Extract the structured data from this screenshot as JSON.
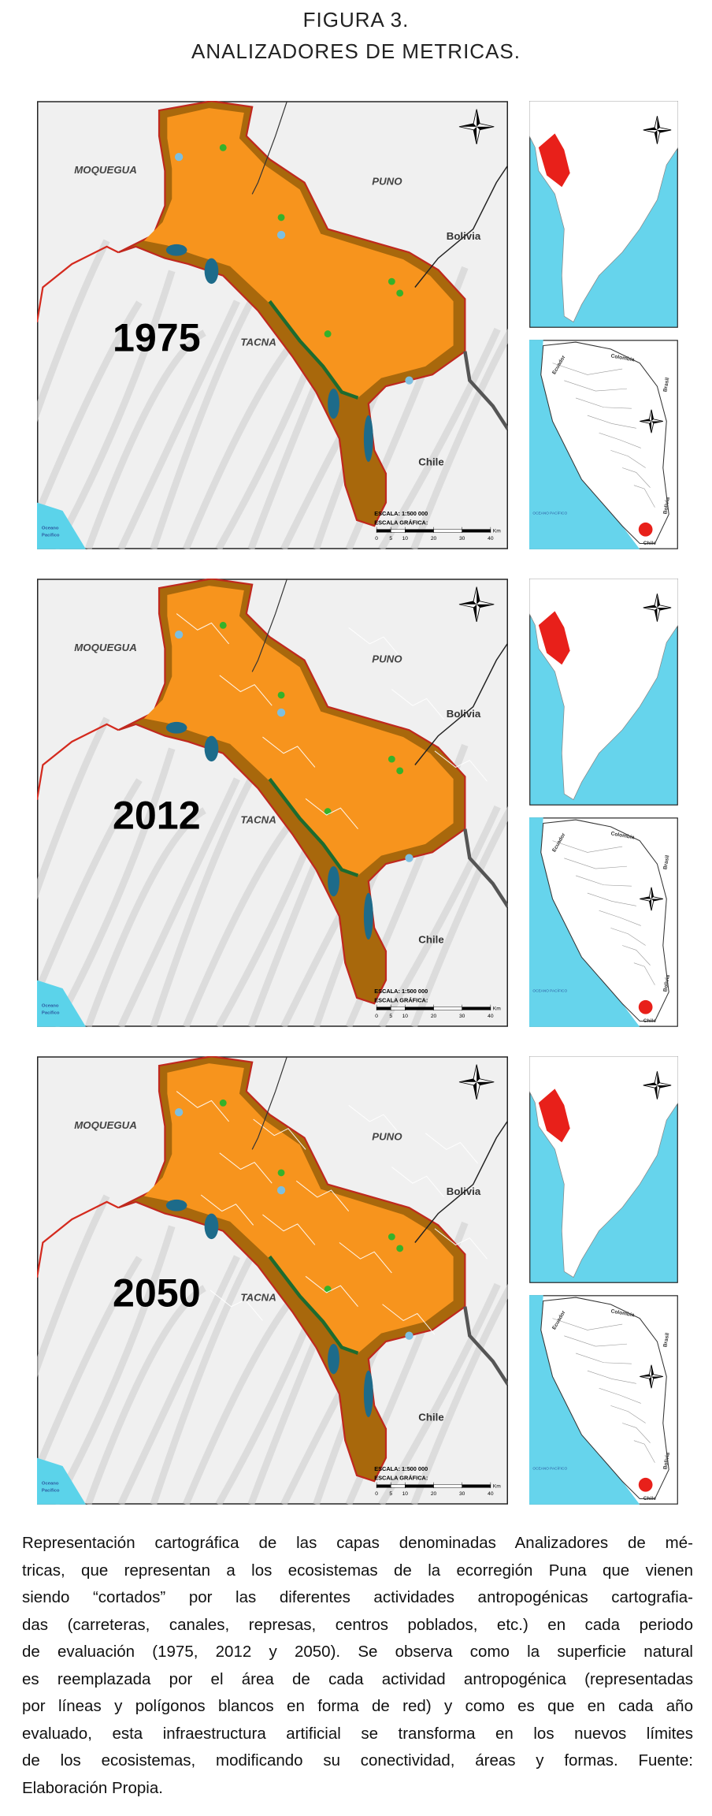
{
  "figure": {
    "title_lines": [
      "FIGURA 3.",
      "ANALIZADORES DE METRICAS."
    ]
  },
  "map_labels": {
    "moquegua": "MOQUEGUA",
    "puno": "PUNO",
    "bolivia": "Bolivia",
    "tacna": "TACNA",
    "chile": "Chile",
    "ocean": [
      "Oceano",
      "Pacífico"
    ],
    "scale": "ESCALA: 1:500 000",
    "scale_graphic": "ESCALA GRÁFICA:",
    "scale_ticks": [
      0,
      5,
      10,
      20,
      30,
      40
    ],
    "scale_unit": "Km"
  },
  "panels": [
    {
      "year": 1975
    },
    {
      "year": 2012
    },
    {
      "year": 2050
    }
  ],
  "inset_labels": {
    "ecuador": "Ecuador",
    "colombia": "Colombia",
    "brasil": "Brasil",
    "bolivia": "Bolivia",
    "chile": "Chile",
    "ocean": "OCEANO PACÍFICO"
  },
  "caption": {
    "lines": [
      "Representación cartográfica de las capas denominadas Analizadores de mé-",
      "tricas, que representan a los ecosistemas de la ecorregión Puna que vienen",
      "siendo “cortados” por las diferentes actividades antropogénicas cartografia-",
      "das (carreteras, canales, represas, centros poblados, etc.) en cada periodo",
      "de evaluación (1975, 2012 y 2050). Se observa como la superficie natural",
      "es reemplazada por el área de cada actividad antropogénica (representadas",
      "por líneas y polígonos blancos en forma de red) y como es que en cada año",
      "evaluado, esta infraestructura artificial se transforma en los nuevos límites",
      "de los ecosistemas, modificando su conectividad, áreas y formas. Fuente:",
      "Elaboración Propia."
    ]
  }
}
